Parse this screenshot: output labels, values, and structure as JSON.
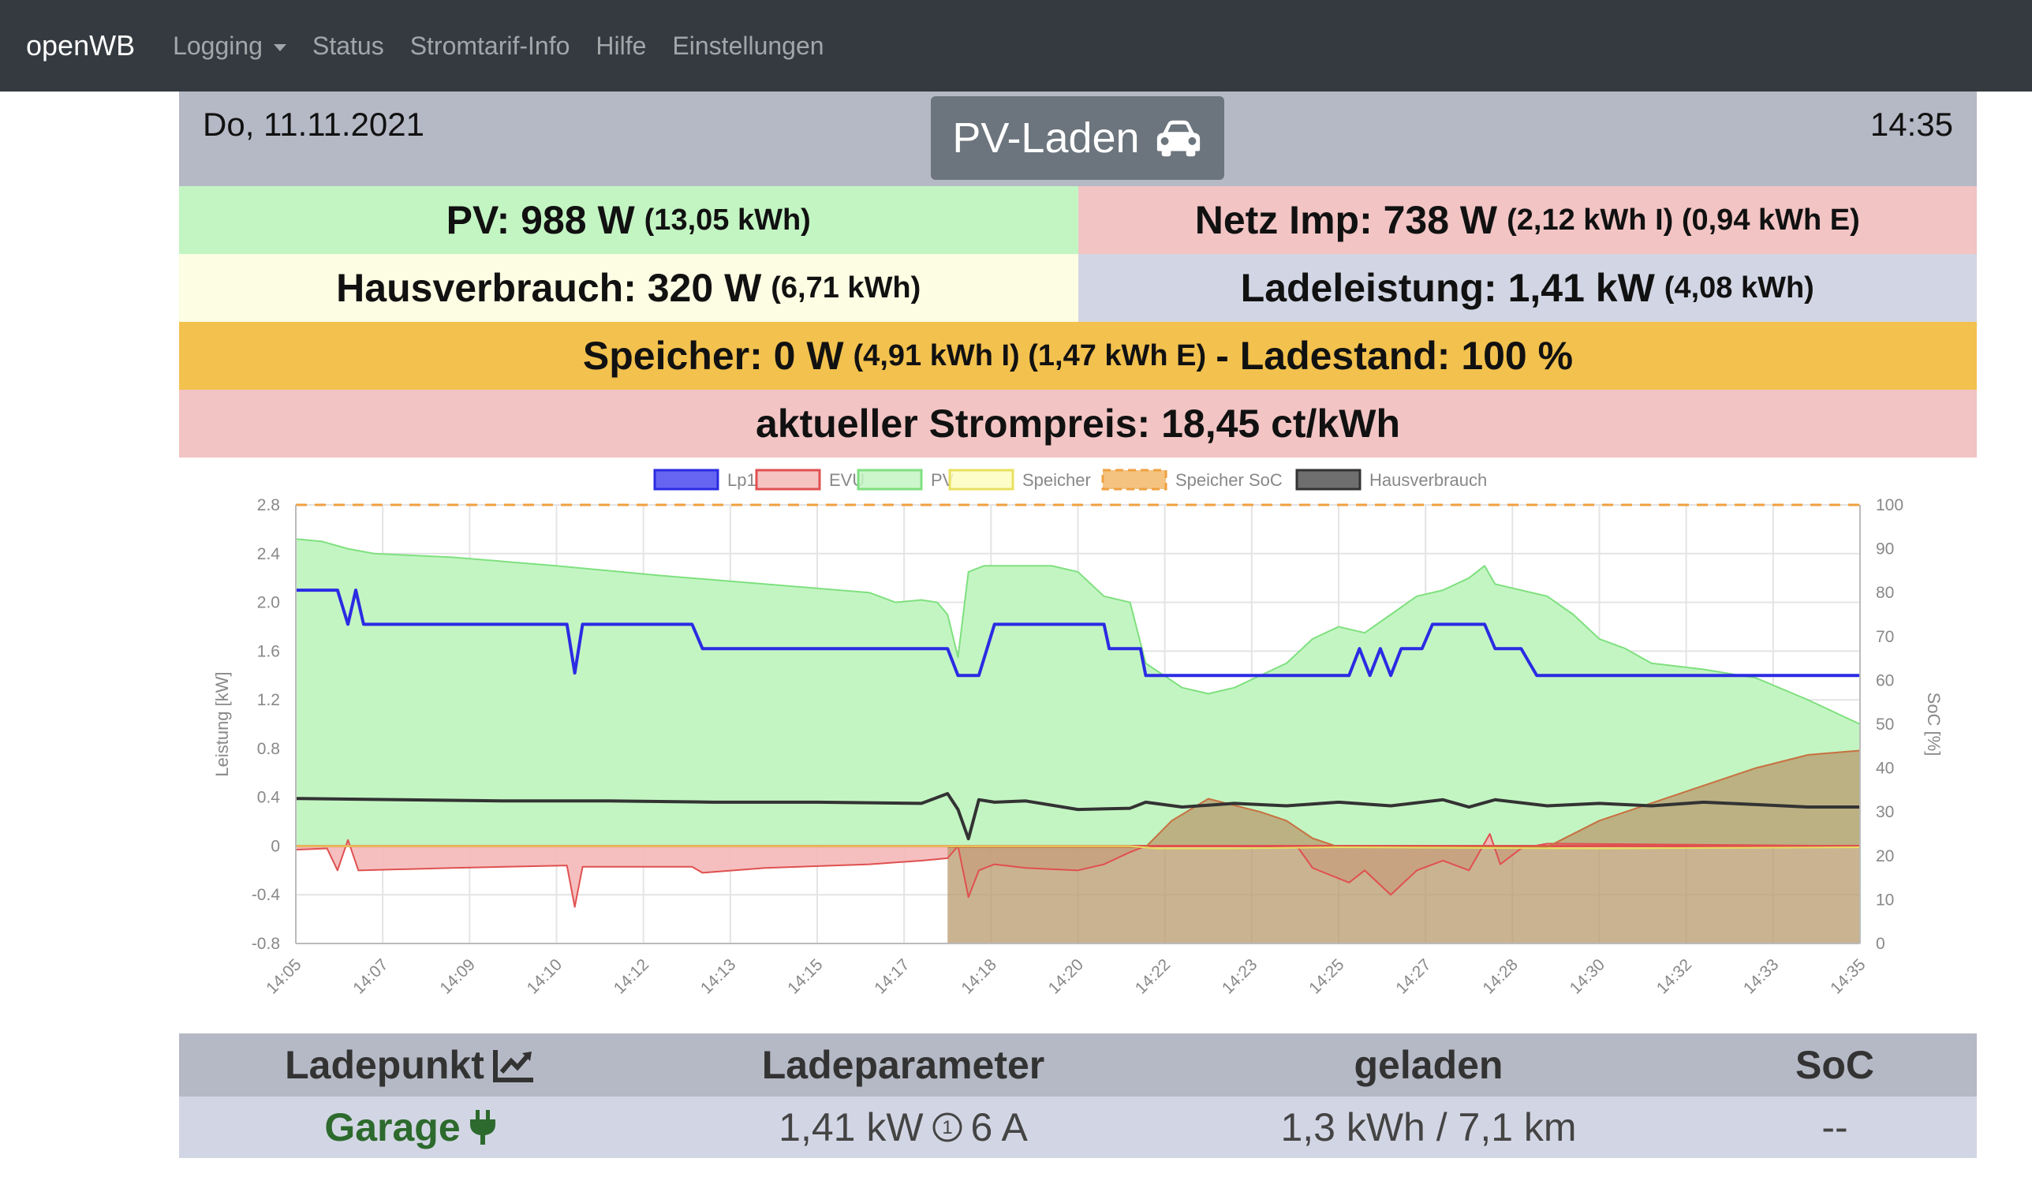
{
  "navbar": {
    "brand": "openWB",
    "items": [
      {
        "label": "Logging",
        "dropdown": true
      },
      {
        "label": "Status"
      },
      {
        "label": "Stromtarif-Info"
      },
      {
        "label": "Hilfe"
      },
      {
        "label": "Einstellungen"
      }
    ]
  },
  "header": {
    "date": "Do, 11.11.2021",
    "time": "14:35",
    "mode": "PV-Laden",
    "mode_icon": "car-icon"
  },
  "summary": {
    "pv_label": "PV: 988 W",
    "pv_energy": "(13,05 kWh)",
    "netz_label": "Netz Imp: 738 W",
    "netz_energy": "(2,12 kWh I) (0,94 kWh E)",
    "haus_label": "Hausverbrauch: 320 W",
    "haus_energy": "(6,71 kWh)",
    "lade_label": "Ladeleistung: 1,41 kW",
    "lade_energy": "(4,08 kWh)",
    "speicher_label": "Speicher: 0 W",
    "speicher_energy": "(4,91 kWh I) (1,47 kWh E)",
    "speicher_soc": "- Ladestand: 100 %",
    "strompreis": "aktueller Strompreis: 18,45 ct/kWh"
  },
  "colors": {
    "pv_bg": "#c3f5c3",
    "netz_bg": "#f2c4c4",
    "haus_bg": "#fdfde3",
    "lade_bg": "#d2d6e4",
    "speicher_bg": "#f2c14e",
    "preis_bg": "#f2c4c4",
    "header_bg": "#b5b9c5",
    "navbar_bg": "#343a40"
  },
  "chart_data": {
    "type": "line",
    "legend_position": "top",
    "ylabel": "Leistung [kW]",
    "y2label": "SoC [%]",
    "ylim": [
      -0.8,
      2.8
    ],
    "y2lim": [
      0,
      100
    ],
    "yticks": [
      "2.8",
      "2.4",
      "2.0",
      "1.6",
      "1.2",
      "0.8",
      "0.4",
      "0",
      "-0.4",
      "-0.8"
    ],
    "y2ticks": [
      "100",
      "90",
      "80",
      "70",
      "60",
      "50",
      "40",
      "30",
      "20",
      "10",
      "0"
    ],
    "xticks": [
      "14:05",
      "14:07",
      "14:09",
      "14:10",
      "14:12",
      "14:13",
      "14:15",
      "14:17",
      "14:18",
      "14:20",
      "14:22",
      "14:23",
      "14:25",
      "14:27",
      "14:28",
      "14:30",
      "14:32",
      "14:33",
      "14:35"
    ],
    "x_range_min": [
      0,
      30
    ],
    "series": [
      {
        "name": "Lp1",
        "color": "#2b2be3",
        "fill": "#4a4af0",
        "points": [
          [
            0,
            2.1
          ],
          [
            0.8,
            2.1
          ],
          [
            1.0,
            1.82
          ],
          [
            1.15,
            2.1
          ],
          [
            1.3,
            1.82
          ],
          [
            5.2,
            1.82
          ],
          [
            5.35,
            1.42
          ],
          [
            5.5,
            1.82
          ],
          [
            7.6,
            1.82
          ],
          [
            7.8,
            1.62
          ],
          [
            12.5,
            1.62
          ],
          [
            12.7,
            1.4
          ],
          [
            13.1,
            1.4
          ],
          [
            13.4,
            1.82
          ],
          [
            15.5,
            1.82
          ],
          [
            15.6,
            1.62
          ],
          [
            16.2,
            1.62
          ],
          [
            16.3,
            1.4
          ],
          [
            20.2,
            1.4
          ],
          [
            20.4,
            1.62
          ],
          [
            20.6,
            1.4
          ],
          [
            20.8,
            1.62
          ],
          [
            21.0,
            1.4
          ],
          [
            21.2,
            1.62
          ],
          [
            21.6,
            1.62
          ],
          [
            21.8,
            1.82
          ],
          [
            22.8,
            1.82
          ],
          [
            23.0,
            1.62
          ],
          [
            23.5,
            1.62
          ],
          [
            23.8,
            1.4
          ],
          [
            30,
            1.4
          ]
        ]
      },
      {
        "name": "EVU",
        "color": "#e05050",
        "fill": "#f4b8b8",
        "points": [
          [
            0,
            -0.03
          ],
          [
            0.6,
            -0.02
          ],
          [
            0.8,
            -0.2
          ],
          [
            1.0,
            0.05
          ],
          [
            1.2,
            -0.2
          ],
          [
            3,
            -0.18
          ],
          [
            5.2,
            -0.16
          ],
          [
            5.35,
            -0.5
          ],
          [
            5.5,
            -0.17
          ],
          [
            7.6,
            -0.17
          ],
          [
            7.8,
            -0.22
          ],
          [
            9,
            -0.18
          ],
          [
            11,
            -0.15
          ],
          [
            12.0,
            -0.12
          ],
          [
            12.5,
            -0.1
          ],
          [
            12.7,
            0.0
          ],
          [
            12.9,
            -0.42
          ],
          [
            13.1,
            -0.2
          ],
          [
            13.4,
            -0.15
          ],
          [
            14,
            -0.18
          ],
          [
            15,
            -0.2
          ],
          [
            15.5,
            -0.15
          ],
          [
            16,
            -0.05
          ],
          [
            16.3,
            0.0
          ],
          [
            19.2,
            0.0
          ],
          [
            19.5,
            -0.18
          ],
          [
            20.2,
            -0.3
          ],
          [
            20.5,
            -0.2
          ],
          [
            21,
            -0.4
          ],
          [
            21.5,
            -0.2
          ],
          [
            22,
            -0.12
          ],
          [
            22.5,
            -0.2
          ],
          [
            22.9,
            0.1
          ],
          [
            23.1,
            -0.15
          ],
          [
            23.5,
            -0.02
          ],
          [
            24,
            0.02
          ],
          [
            30,
            0.0
          ]
        ]
      },
      {
        "name": "PV",
        "color": "#7fe07f",
        "fill": "#c3f5c3",
        "points": [
          [
            0,
            2.52
          ],
          [
            0.5,
            2.5
          ],
          [
            1.0,
            2.44
          ],
          [
            1.5,
            2.4
          ],
          [
            3,
            2.37
          ],
          [
            5,
            2.3
          ],
          [
            7,
            2.22
          ],
          [
            9,
            2.15
          ],
          [
            11,
            2.08
          ],
          [
            11.5,
            2.0
          ],
          [
            12.0,
            2.02
          ],
          [
            12.3,
            2.0
          ],
          [
            12.5,
            1.9
          ],
          [
            12.7,
            1.55
          ],
          [
            12.9,
            2.25
          ],
          [
            13.2,
            2.3
          ],
          [
            14.5,
            2.3
          ],
          [
            15,
            2.25
          ],
          [
            15.5,
            2.05
          ],
          [
            16,
            2.0
          ],
          [
            16.3,
            1.5
          ],
          [
            17,
            1.3
          ],
          [
            17.5,
            1.25
          ],
          [
            18,
            1.3
          ],
          [
            18.5,
            1.4
          ],
          [
            19,
            1.5
          ],
          [
            19.5,
            1.7
          ],
          [
            20,
            1.8
          ],
          [
            20.5,
            1.75
          ],
          [
            21,
            1.9
          ],
          [
            21.5,
            2.05
          ],
          [
            22,
            2.1
          ],
          [
            22.5,
            2.2
          ],
          [
            22.8,
            2.3
          ],
          [
            23,
            2.15
          ],
          [
            23.5,
            2.1
          ],
          [
            24,
            2.05
          ],
          [
            24.5,
            1.9
          ],
          [
            25,
            1.7
          ],
          [
            25.5,
            1.62
          ],
          [
            26,
            1.5
          ],
          [
            27,
            1.45
          ],
          [
            28,
            1.38
          ],
          [
            29,
            1.2
          ],
          [
            30,
            1.0
          ]
        ]
      },
      {
        "name": "Speicher",
        "color": "#e8e060",
        "fill": "#fdfdc0",
        "points": [
          [
            0,
            0.0
          ],
          [
            16,
            0.0
          ],
          [
            16.5,
            -0.02
          ],
          [
            18,
            -0.02
          ],
          [
            20,
            -0.01
          ],
          [
            25,
            -0.02
          ],
          [
            30,
            -0.01
          ]
        ]
      },
      {
        "name": "Speicher SoC",
        "color": "#f0a040",
        "fill": "#c8a06c",
        "dashed": true,
        "axis": "y2",
        "points": [
          [
            0,
            100
          ],
          [
            30,
            100
          ]
        ]
      },
      {
        "name": "Speicher SoC fill",
        "color": "#c87040",
        "fill": "#b89a6c",
        "axis": "y2",
        "hide_legend": true,
        "points": [
          [
            12.5,
            22
          ],
          [
            12.8,
            22
          ],
          [
            16.3,
            22
          ],
          [
            16.8,
            28
          ],
          [
            17.5,
            33
          ],
          [
            18.5,
            30
          ],
          [
            19,
            28
          ],
          [
            19.5,
            24
          ],
          [
            20,
            22
          ],
          [
            24,
            22
          ],
          [
            25,
            28
          ],
          [
            26,
            32
          ],
          [
            27,
            36
          ],
          [
            28,
            40
          ],
          [
            29,
            43
          ],
          [
            30,
            44
          ]
        ]
      },
      {
        "name": "Hausverbrauch",
        "color": "#333333",
        "fill": "#555555",
        "points": [
          [
            0,
            0.39
          ],
          [
            2,
            0.38
          ],
          [
            4,
            0.37
          ],
          [
            6,
            0.37
          ],
          [
            8,
            0.36
          ],
          [
            10,
            0.36
          ],
          [
            12,
            0.35
          ],
          [
            12.5,
            0.43
          ],
          [
            12.7,
            0.3
          ],
          [
            12.9,
            0.06
          ],
          [
            13.1,
            0.38
          ],
          [
            13.4,
            0.36
          ],
          [
            14,
            0.37
          ],
          [
            15,
            0.3
          ],
          [
            16,
            0.31
          ],
          [
            16.3,
            0.36
          ],
          [
            17,
            0.32
          ],
          [
            18,
            0.35
          ],
          [
            19,
            0.33
          ],
          [
            20,
            0.36
          ],
          [
            21,
            0.33
          ],
          [
            22,
            0.38
          ],
          [
            22.5,
            0.32
          ],
          [
            23,
            0.38
          ],
          [
            24,
            0.33
          ],
          [
            25,
            0.35
          ],
          [
            26,
            0.33
          ],
          [
            27,
            0.36
          ],
          [
            28,
            0.34
          ],
          [
            29,
            0.32
          ],
          [
            30,
            0.32
          ]
        ]
      }
    ]
  },
  "table": {
    "headers": [
      "Ladepunkt",
      "Ladeparameter",
      "geladen",
      "SoC"
    ],
    "rows": [
      {
        "name": "Garage",
        "params": "1,41 kW ① 6 A",
        "params_power": "1,41 kW",
        "params_phase": "1",
        "params_current": "6 A",
        "charged": "1,3 kWh / 7,1 km",
        "soc": "--"
      }
    ]
  }
}
